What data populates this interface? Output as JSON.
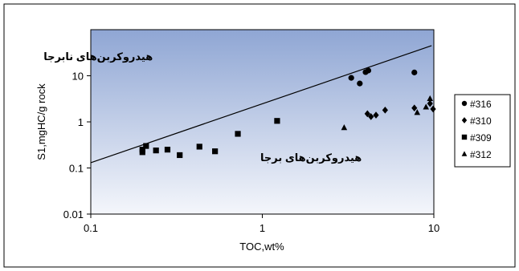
{
  "chart_data": {
    "type": "scatter",
    "title": "",
    "xlabel": "TOC,wt%",
    "ylabel": "S1,mgHC/g rock",
    "x_scale": "log",
    "y_scale": "log",
    "xlim": [
      0.1,
      10
    ],
    "ylim": [
      0.01,
      100
    ],
    "x_ticks": [
      {
        "value": 0.1,
        "label": "0.1"
      },
      {
        "value": 1,
        "label": "1"
      },
      {
        "value": 10,
        "label": "10"
      }
    ],
    "y_ticks": [
      {
        "value": 0.01,
        "label": "0.01"
      },
      {
        "value": 0.1,
        "label": "0.1"
      },
      {
        "value": 1,
        "label": "1"
      },
      {
        "value": 10,
        "label": "10"
      }
    ],
    "grid": false,
    "legend_position": "right",
    "annotations": [
      {
        "text": "هیدروکربن‌های نابرجا",
        "x": 0.23,
        "y": 22
      },
      {
        "text": "هیدروکربن‌های برجا",
        "x": 3.8,
        "y": 0.14
      }
    ],
    "reference_line": {
      "x": [
        0.1,
        9.7
      ],
      "y": [
        0.13,
        45
      ]
    },
    "series": [
      {
        "name": "#316",
        "marker": "circle",
        "color": "#000000",
        "points": [
          [
            3.3,
            9
          ],
          [
            3.7,
            6.8
          ],
          [
            4.0,
            12
          ],
          [
            4.15,
            13
          ],
          [
            7.7,
            11.8
          ]
        ]
      },
      {
        "name": "#310",
        "marker": "diamond",
        "color": "#000000",
        "points": [
          [
            4.1,
            1.5
          ],
          [
            4.3,
            1.3
          ],
          [
            4.6,
            1.4
          ],
          [
            5.2,
            1.8
          ],
          [
            7.7,
            2.0
          ],
          [
            9.5,
            2.5
          ],
          [
            9.9,
            1.9
          ]
        ]
      },
      {
        "name": "#309",
        "marker": "square",
        "color": "#000000",
        "points": [
          [
            0.2,
            0.22
          ],
          [
            0.2,
            0.25
          ],
          [
            0.21,
            0.3
          ],
          [
            0.24,
            0.24
          ],
          [
            0.28,
            0.25
          ],
          [
            0.33,
            0.19
          ],
          [
            0.43,
            0.29
          ],
          [
            0.53,
            0.23
          ],
          [
            0.72,
            0.55
          ],
          [
            1.22,
            1.05
          ]
        ]
      },
      {
        "name": "#312",
        "marker": "triangle",
        "color": "#000000",
        "points": [
          [
            3.0,
            0.75
          ],
          [
            8.0,
            1.6
          ],
          [
            9.0,
            2.1
          ],
          [
            9.5,
            3.2
          ]
        ]
      }
    ]
  }
}
